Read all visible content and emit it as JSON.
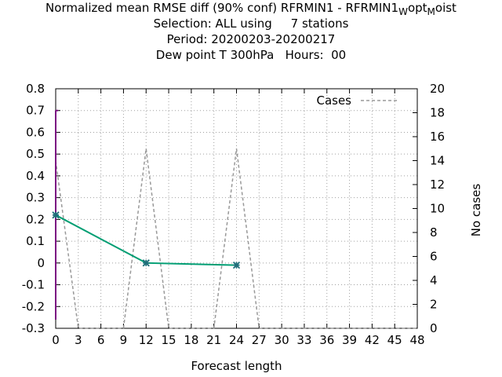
{
  "title": {
    "line1_main": "Normalized mean RMSE diff (90% conf) RFRMIN1 - RFRMIN1",
    "line1_sub1": "W",
    "line1_mid": "opt",
    "line1_sub2": "M",
    "line1_end": "oist",
    "line2": "Selection: ALL using     7 stations",
    "line3": "Period: 20200203-20200217",
    "line4": "Dew point T 300hPa   Hours:  00"
  },
  "chart_data": {
    "type": "line",
    "xlabel": "Forecast length",
    "ylabel": "",
    "y2label": "No cases",
    "xlim": [
      0,
      48
    ],
    "ylim": [
      -0.3,
      0.8
    ],
    "y2lim": [
      0,
      20
    ],
    "xticks": [
      "0",
      "3",
      "6",
      "9",
      "12",
      "15",
      "18",
      "21",
      "24",
      "27",
      "30",
      "33",
      "36",
      "39",
      "42",
      "45",
      "48"
    ],
    "yticks": [
      "0.8",
      "0.7",
      "0.6",
      "0.5",
      "0.4",
      "0.3",
      "0.2",
      "0.1",
      "0",
      "-0.1",
      "-0.2",
      "-0.3"
    ],
    "y2ticks": [
      "20",
      "18",
      "16",
      "14",
      "12",
      "10",
      "8",
      "6",
      "4",
      "2",
      "0"
    ],
    "grid": true,
    "legend_position": "top-right",
    "colors": {
      "diff": "#009e73",
      "cases": "#999999",
      "confidence": "#7b0a82"
    },
    "series": [
      {
        "name": "",
        "axis": "y1",
        "x": [
          0,
          12,
          24
        ],
        "y": [
          0.22,
          0.0,
          -0.01
        ],
        "markers": true
      },
      {
        "name": "Cases",
        "axis": "y2",
        "style": "dashed",
        "x": [
          0,
          3,
          9,
          12,
          15,
          21,
          24,
          27,
          48
        ],
        "y": [
          14,
          0,
          0,
          15,
          0,
          0,
          15,
          0,
          0
        ]
      }
    ],
    "confidence_bars": [
      {
        "x": 0,
        "low": -0.26,
        "high": 0.7
      }
    ]
  }
}
